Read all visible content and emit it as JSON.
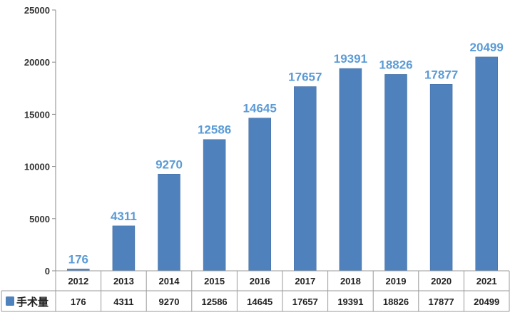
{
  "chart_data": {
    "type": "bar",
    "categories": [
      "2012",
      "2013",
      "2014",
      "2015",
      "2016",
      "2017",
      "2018",
      "2019",
      "2020",
      "2021"
    ],
    "series": [
      {
        "name": "手术量",
        "values": [
          176,
          4311,
          9270,
          12586,
          14645,
          17657,
          19391,
          18826,
          17877,
          20499
        ]
      }
    ],
    "y_ticks": [
      "0",
      "5000",
      "10000",
      "15000",
      "20000",
      "25000"
    ],
    "ylim": [
      0,
      25000
    ],
    "title": "",
    "xlabel": "",
    "ylabel": "",
    "grid": false,
    "data_table": true,
    "legend": "data-table-left",
    "colors": {
      "bar": "#4f81bd",
      "data_label": "#5b9bd5",
      "axis": "#888888"
    }
  }
}
